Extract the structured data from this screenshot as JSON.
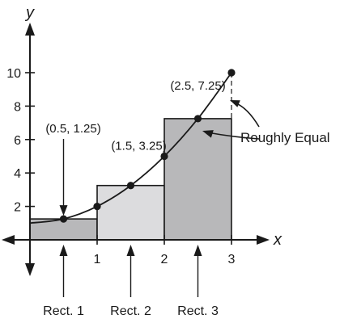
{
  "chart_data": {
    "type": "line",
    "title": "",
    "xlabel": "x",
    "ylabel": "y",
    "xlim": [
      0,
      3
    ],
    "ylim": [
      0,
      10
    ],
    "x_ticks": [
      "1",
      "2",
      "3"
    ],
    "y_ticks": [
      "2",
      "4",
      "6",
      "8",
      "10"
    ],
    "curve": {
      "x": [
        0,
        0.5,
        1,
        1.5,
        2,
        2.5,
        3
      ],
      "y": [
        1,
        1.25,
        2,
        3.25,
        5,
        7.25,
        10
      ]
    },
    "rectangles": [
      {
        "label": "Rect. 1",
        "x_start": 0,
        "x_end": 1,
        "height": 1.25,
        "color": "#b8b8ba"
      },
      {
        "label": "Rect. 2",
        "x_start": 1,
        "x_end": 2,
        "height": 3.25,
        "color": "#dcdcde"
      },
      {
        "label": "Rect. 3",
        "x_start": 2,
        "x_end": 3,
        "height": 7.25,
        "color": "#b8b8ba"
      }
    ],
    "point_labels": [
      {
        "text": "(0.5, 1.25)",
        "x": 0.5,
        "y": 1.25
      },
      {
        "text": "(1.5, 3.25)",
        "x": 1.5,
        "y": 3.25
      },
      {
        "text": "(2.5, 7.25)",
        "x": 2.5,
        "y": 7.25
      }
    ],
    "annotation": "Roughly Equal"
  }
}
